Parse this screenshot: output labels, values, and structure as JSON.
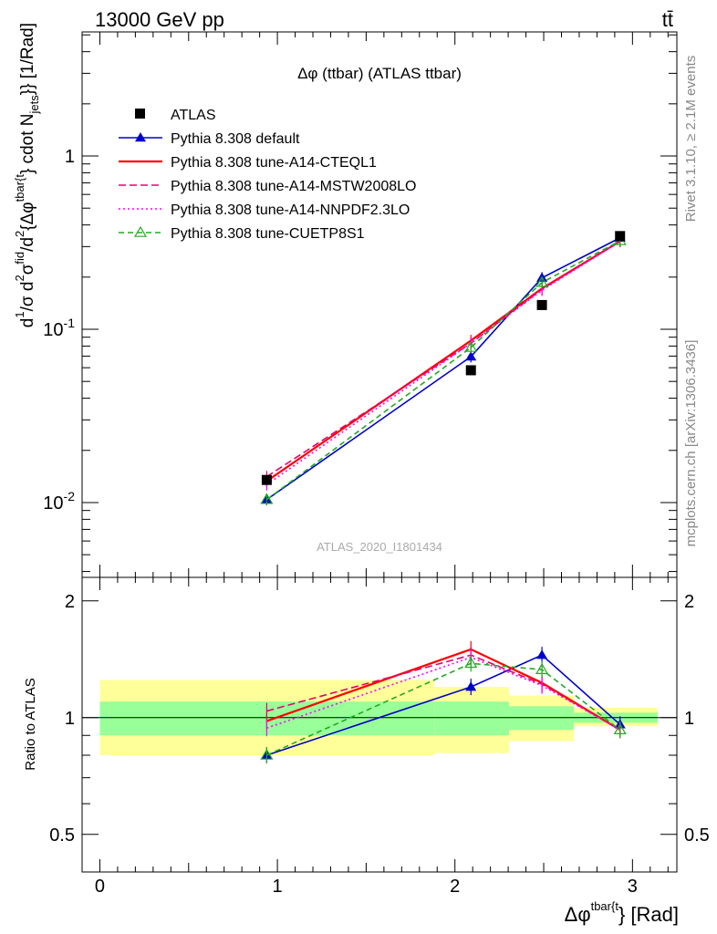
{
  "header": {
    "left": "13000 GeV pp",
    "right": "tt̄"
  },
  "side": {
    "rivet": "Rivet 3.1.10, ≥ 2.1M events",
    "mcplots": "mcplots.cern.ch [arXiv:1306.3436]"
  },
  "chart_data": {
    "type": "line",
    "title": "Δφ (ttbar) (ATLAS ttbar)",
    "watermark": "ATLAS_2020_I1801434",
    "xlabel": "Δφ^{tbar{t}} [Rad]",
    "ylabel": "d^{1}/σ d^{2}σ^{fid}/d^{2}{Δφ^{tbar{t}}} cdot N_{jets}}} [1/Rad]",
    "ratio_ylabel": "Ratio to ATLAS",
    "log_y": true,
    "xlim": [
      -0.1,
      3.25
    ],
    "ylim": [
      0.0037,
      5.2
    ],
    "ratio_ylim": [
      0.4,
      2.3
    ],
    "x_ticks": [
      "0",
      "1",
      "2",
      "3"
    ],
    "y_ticks": [
      "10^{-2}",
      "10^{-1}",
      "1"
    ],
    "ratio_ticks": [
      "0.5",
      "1",
      "2"
    ],
    "legend_position": "top-left",
    "bins": [
      [
        0,
        1.885
      ],
      [
        1.885,
        2.305
      ],
      [
        2.305,
        2.67
      ],
      [
        2.67,
        3.1416
      ]
    ],
    "x": [
      0.94,
      2.09,
      2.49,
      2.93
    ],
    "data": {
      "name": "ATLAS",
      "values": [
        0.0135,
        0.058,
        0.138,
        0.345
      ],
      "ratio_band_inner": [
        [
          0.9,
          1.1
        ],
        [
          0.9,
          1.1
        ],
        [
          0.93,
          1.07
        ],
        [
          0.97,
          1.03
        ]
      ],
      "ratio_band_outer": [
        [
          0.8,
          1.25
        ],
        [
          0.81,
          1.2
        ],
        [
          0.87,
          1.14
        ],
        [
          0.95,
          1.06
        ]
      ]
    },
    "series": [
      {
        "name": "Pythia 8.308 default",
        "color": "#0000cc",
        "dash": "none",
        "marker": "triangle-filled",
        "values": [
          0.0104,
          0.0695,
          0.198,
          0.337
        ],
        "ratio": [
          0.8,
          1.2,
          1.45,
          0.96
        ]
      },
      {
        "name": "Pythia 8.308 tune-A14-CTEQL1",
        "color": "#ff0000",
        "dash": "none",
        "marker": "none",
        "values": [
          0.0133,
          0.086,
          0.172,
          0.322
        ],
        "ratio": [
          0.98,
          1.5,
          1.23,
          0.93
        ]
      },
      {
        "name": "Pythia 8.308 tune-A14-MSTW2008LO",
        "color": "#e8006e",
        "dash": "8,4",
        "marker": "none",
        "values": [
          0.0141,
          0.083,
          0.17,
          0.322
        ],
        "ratio": [
          1.04,
          1.45,
          1.22,
          0.93
        ]
      },
      {
        "name": "Pythia 8.308 tune-A14-NNPDF2.3LO",
        "color": "#ff00ff",
        "dash": "2,3",
        "marker": "none",
        "values": [
          0.0127,
          0.083,
          0.168,
          0.321
        ],
        "ratio": [
          0.94,
          1.43,
          1.21,
          0.93
        ]
      },
      {
        "name": "Pythia 8.308 tune-CUETP8S1",
        "color": "#22aa22",
        "dash": "6,4",
        "marker": "triangle-open",
        "values": [
          0.0104,
          0.0785,
          0.186,
          0.324
        ],
        "ratio": [
          0.8,
          1.38,
          1.33,
          0.93
        ]
      }
    ]
  }
}
